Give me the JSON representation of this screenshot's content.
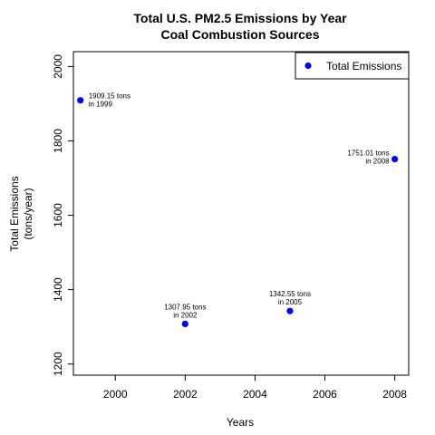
{
  "chart_data": {
    "type": "scatter",
    "title": "Total U.S. PM2.5 Emissions by Year",
    "subtitle": "Coal Combustion Sources",
    "xlabel": "Years",
    "ylabel_line1": "Total Emissions",
    "ylabel_line2": "(tons/year)",
    "xlim": [
      1998.8,
      2008.4
    ],
    "ylim": [
      1170,
      2040
    ],
    "xticks": [
      2000,
      2002,
      2004,
      2006,
      2008
    ],
    "yticks": [
      1200,
      1400,
      1600,
      1800,
      2000
    ],
    "legend": {
      "position": "top-right",
      "label": "Total Emissions"
    },
    "point_color": "#0000ff",
    "series": [
      {
        "name": "Total Emissions",
        "points": [
          {
            "x": 1999,
            "y": 1909.15,
            "label_line1": "1909.15 tons",
            "label_line2": "in 1999",
            "anchor": "right"
          },
          {
            "x": 2002,
            "y": 1307.95,
            "label_line1": "1307.95 tons",
            "label_line2": "in 2002",
            "anchor": "above"
          },
          {
            "x": 2005,
            "y": 1342.55,
            "label_line1": "1342.55 tons",
            "label_line2": "in 2005",
            "anchor": "above"
          },
          {
            "x": 2008,
            "y": 1751.01,
            "label_line1": "1751.01 tons",
            "label_line2": "in 2008",
            "anchor": "left"
          }
        ]
      }
    ]
  }
}
